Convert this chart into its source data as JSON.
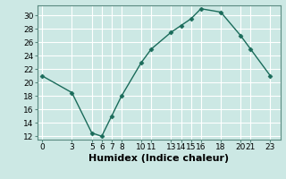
{
  "x": [
    0,
    3,
    5,
    6,
    7,
    8,
    10,
    11,
    13,
    14,
    15,
    16,
    18,
    20,
    21,
    23
  ],
  "y": [
    21,
    18.5,
    12.5,
    12,
    15,
    18,
    23,
    25,
    27.5,
    28.5,
    29.5,
    31,
    30.5,
    27,
    25,
    21
  ],
  "line_color": "#1a6b5a",
  "marker": "D",
  "marker_size": 2.5,
  "background_color": "#cce8e4",
  "grid_color": "#ffffff",
  "xlabel": "Humidex (Indice chaleur)",
  "ylim": [
    11.5,
    31.5
  ],
  "xlim": [
    -0.5,
    24
  ],
  "yticks": [
    12,
    14,
    16,
    18,
    20,
    22,
    24,
    26,
    28,
    30
  ],
  "xticks": [
    0,
    3,
    5,
    6,
    7,
    8,
    10,
    11,
    13,
    14,
    15,
    16,
    18,
    20,
    21,
    23
  ],
  "xlabel_fontsize": 8,
  "tick_fontsize": 6.5,
  "linewidth": 1.0
}
